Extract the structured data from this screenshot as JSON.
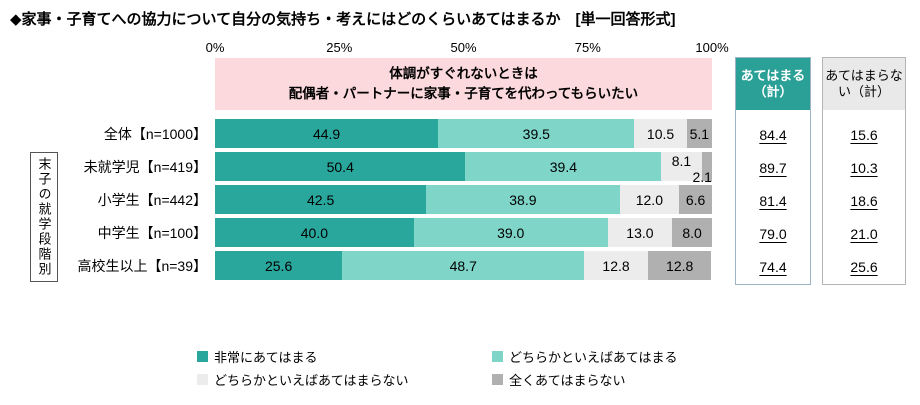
{
  "title": "◆家事・子育てへの協力について自分の気持ち・考えにはどのくらいあてはまるか　[単一回答形式]",
  "banner": {
    "line1": "体調がすぐれないときは",
    "line2": "配偶者・パートナーに家事・子育てを代わってもらいたい"
  },
  "group_label": "末子の就学段階別",
  "summary": {
    "applies_header": "あてはまる（計）",
    "not_applies_header": "あてはまらない（計）"
  },
  "legend": [
    {
      "label": "非常にあてはまる",
      "color": "#2aa79c"
    },
    {
      "label": "どちらかといえばあてはまる",
      "color": "#7ed5c8"
    },
    {
      "label": "どちらかといえばあてはまらない",
      "color": "#ececec"
    },
    {
      "label": "全くあてはまらない",
      "color": "#b0b0b0"
    }
  ],
  "chart_data": {
    "type": "bar",
    "stacked": true,
    "orientation": "horizontal",
    "title": "体調がすぐれないときは配偶者・パートナーに家事・子育てを代わってもらいたい",
    "categories": [
      "全体【n=1000】",
      "未就学児【n=419】",
      "小学生【n=442】",
      "中学生【n=100】",
      "高校生以上【n=39】"
    ],
    "series": [
      {
        "name": "非常にあてはまる",
        "color": "#2aa79c",
        "values": [
          44.9,
          50.4,
          42.5,
          40.0,
          25.6
        ]
      },
      {
        "name": "どちらかといえばあてはまる",
        "color": "#7ed5c8",
        "values": [
          39.5,
          39.4,
          38.9,
          39.0,
          48.7
        ]
      },
      {
        "name": "どちらかといえばあてはまらない",
        "color": "#ececec",
        "values": [
          10.5,
          8.1,
          12.0,
          13.0,
          12.8
        ]
      },
      {
        "name": "全くあてはまらない",
        "color": "#b0b0b0",
        "values": [
          5.1,
          2.1,
          6.6,
          8.0,
          12.8
        ]
      }
    ],
    "totals": {
      "applies": [
        84.4,
        89.7,
        81.4,
        79.0,
        74.4
      ],
      "not_applies": [
        15.6,
        10.3,
        18.6,
        21.0,
        25.6
      ]
    },
    "xlim": [
      0,
      100
    ],
    "x_ticks": [
      "0%",
      "25%",
      "50%",
      "75%",
      "100%"
    ],
    "grid": false,
    "legend_position": "bottom"
  }
}
